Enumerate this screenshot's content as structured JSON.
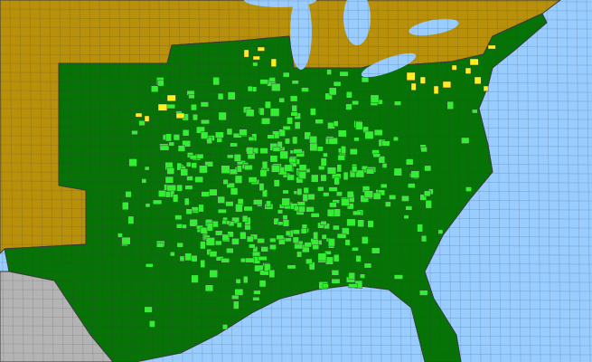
{
  "map": {
    "colors": {
      "water": "#99ccff",
      "outside_range": "#b8900a",
      "present": "#067306",
      "county_present": "#33ee33",
      "county_highlight": "#ffee22",
      "other_country": "#b4b4b4",
      "border": "#3a3a3a"
    }
  }
}
